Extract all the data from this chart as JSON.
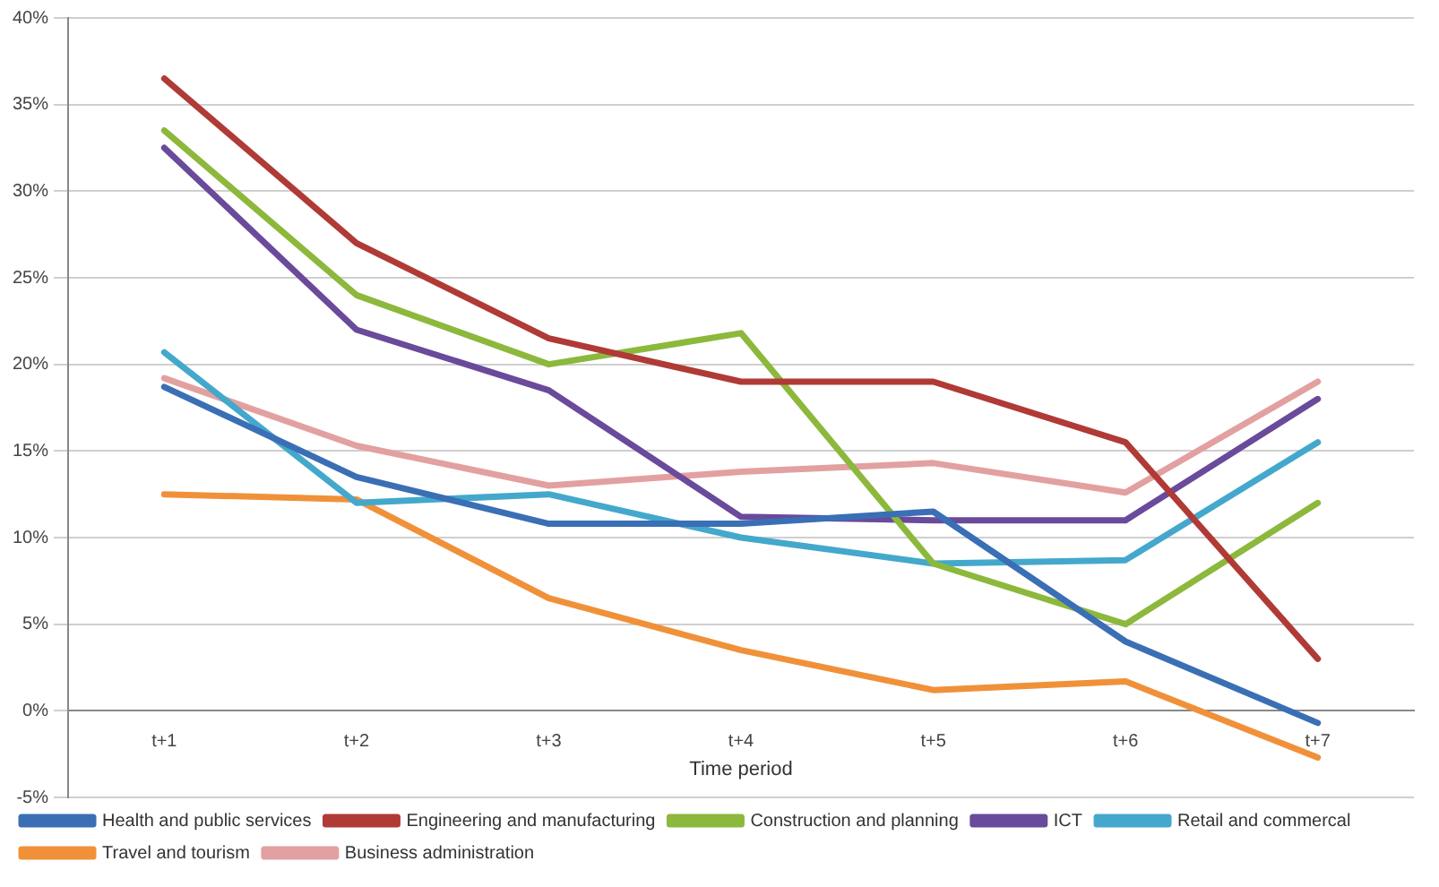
{
  "chart_data": {
    "type": "line",
    "xlabel": "Time period",
    "categories": [
      "t+1",
      "t+2",
      "t+3",
      "t+4",
      "t+5",
      "t+6",
      "t+7"
    ],
    "series": [
      {
        "name": "Health and public services",
        "color": "#3a6fb5",
        "values": [
          18.7,
          13.5,
          10.8,
          10.8,
          11.5,
          4,
          -0.7
        ]
      },
      {
        "name": "Engineering and manufacturing",
        "color": "#b03a36",
        "values": [
          36.5,
          27,
          21.5,
          19,
          19,
          15.5,
          3
        ]
      },
      {
        "name": "Construction and planning",
        "color": "#8cb83c",
        "values": [
          33.5,
          24,
          20,
          21.8,
          8.5,
          5,
          12
        ]
      },
      {
        "name": "ICT",
        "color": "#6a4a9a",
        "values": [
          32.5,
          22,
          18.5,
          11.2,
          11,
          11,
          18
        ]
      },
      {
        "name": "Retail and commercal",
        "color": "#44a8cc",
        "values": [
          20.7,
          12,
          12.5,
          10,
          8.5,
          8.7,
          15.5
        ]
      },
      {
        "name": "Travel and tourism",
        "color": "#f0913a",
        "values": [
          12.5,
          12.2,
          6.5,
          3.5,
          1.2,
          1.7,
          -2.7
        ]
      },
      {
        "name": "Business administration",
        "color": "#e3a0a0",
        "values": [
          19.2,
          15.3,
          13,
          13.8,
          14.3,
          12.6,
          19
        ]
      }
    ],
    "ylim": [
      -5,
      40
    ],
    "yticks": [
      {
        "value": -5,
        "label": "-5%"
      },
      {
        "value": 0,
        "label": "0%"
      },
      {
        "value": 5,
        "label": "5%"
      },
      {
        "value": 10,
        "label": "10%"
      },
      {
        "value": 15,
        "label": "15%"
      },
      {
        "value": 20,
        "label": "20%"
      },
      {
        "value": 25,
        "label": "25%"
      },
      {
        "value": 30,
        "label": "30%"
      },
      {
        "value": 35,
        "label": "35%"
      },
      {
        "value": 40,
        "label": "40%"
      }
    ],
    "grid": "y",
    "legend": "bottom",
    "marker": "none",
    "line_style": "solid"
  }
}
